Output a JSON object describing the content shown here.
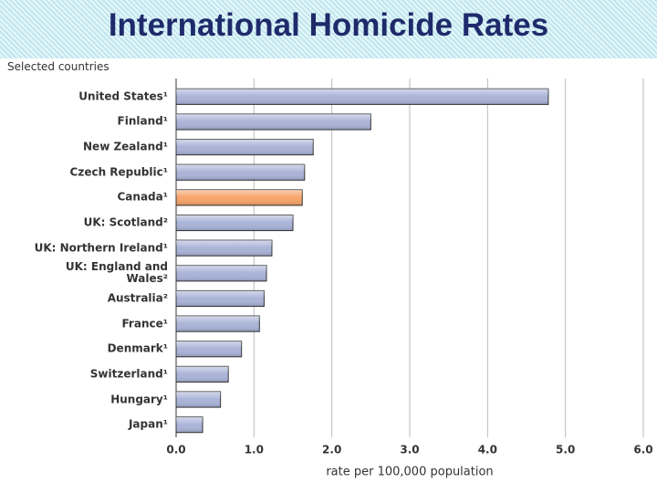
{
  "chart_data": {
    "type": "bar",
    "orientation": "horizontal",
    "title": "International Homicide Rates",
    "subtitle": "Selected countries",
    "x_label": "rate per 100,000 population",
    "categories": [
      "United States¹",
      "Finland¹",
      "New Zealand¹",
      "Czech Republic¹",
      "Canada¹",
      "UK: Scotland²",
      "UK: Northern Ireland¹",
      "UK: England and\nWales²",
      "Australia²",
      "France¹",
      "Denmark¹",
      "Switzerland¹",
      "Hungary¹",
      "Japan¹"
    ],
    "values": [
      4.78,
      2.5,
      1.76,
      1.65,
      1.62,
      1.5,
      1.23,
      1.16,
      1.13,
      1.07,
      0.84,
      0.67,
      0.57,
      0.34
    ],
    "colors": [
      "#aab4d8",
      "#aab4d8",
      "#aab4d8",
      "#aab4d8",
      "#f6a469",
      "#aab4d8",
      "#aab4d8",
      "#aab4d8",
      "#aab4d8",
      "#aab4d8",
      "#aab4d8",
      "#aab4d8",
      "#aab4d8",
      "#aab4d8"
    ],
    "xlim": [
      0,
      6
    ],
    "xticks": [
      {
        "value": 0,
        "label": "0.0"
      },
      {
        "value": 1,
        "label": "1.0"
      },
      {
        "value": 2,
        "label": "2.0"
      },
      {
        "value": 3,
        "label": "3.0"
      },
      {
        "value": 4,
        "label": "4.0"
      },
      {
        "value": 5,
        "label": "5.0"
      },
      {
        "value": 6,
        "label": "6.0"
      }
    ],
    "grid": true
  }
}
